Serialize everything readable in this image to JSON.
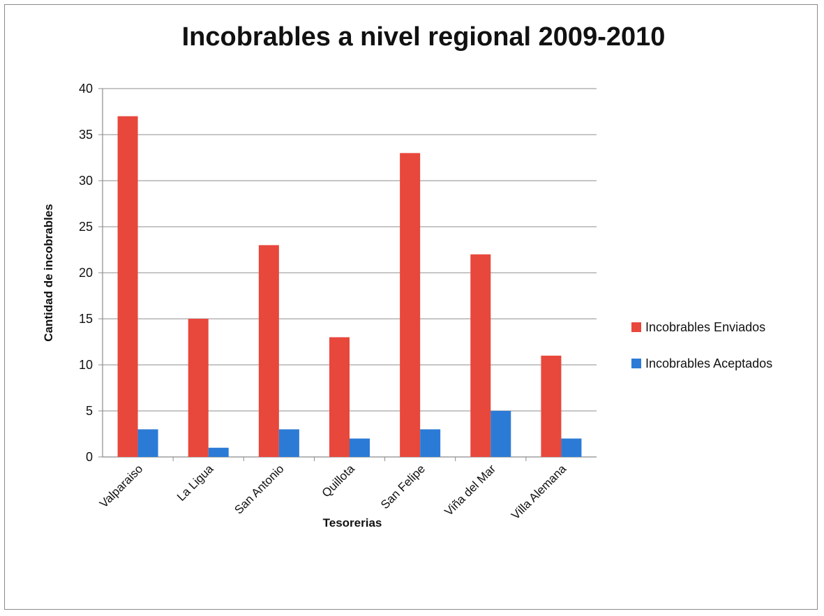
{
  "chart_data": {
    "type": "bar",
    "title": "Incobrables a nivel regional 2009-2010",
    "xlabel": "Tesorerias",
    "ylabel": "Cantidad de incobrables",
    "categories": [
      "Valparaiso",
      "La Ligua",
      "San Antonio",
      "Quillota",
      "San Felipe",
      "Viña del Mar",
      "Villa Alemana"
    ],
    "series": [
      {
        "name": "Incobrables Enviados",
        "values": [
          37,
          15,
          23,
          13,
          33,
          22,
          11
        ],
        "color": "#e8473c"
      },
      {
        "name": "Incobrables Aceptados",
        "values": [
          3,
          1,
          3,
          2,
          3,
          5,
          2
        ],
        "color": "#2b7bd6"
      }
    ],
    "ylim": [
      0,
      40
    ],
    "yticks": [
      0,
      5,
      10,
      15,
      20,
      25,
      30,
      35,
      40
    ],
    "grid": true,
    "legend_position": "right"
  }
}
